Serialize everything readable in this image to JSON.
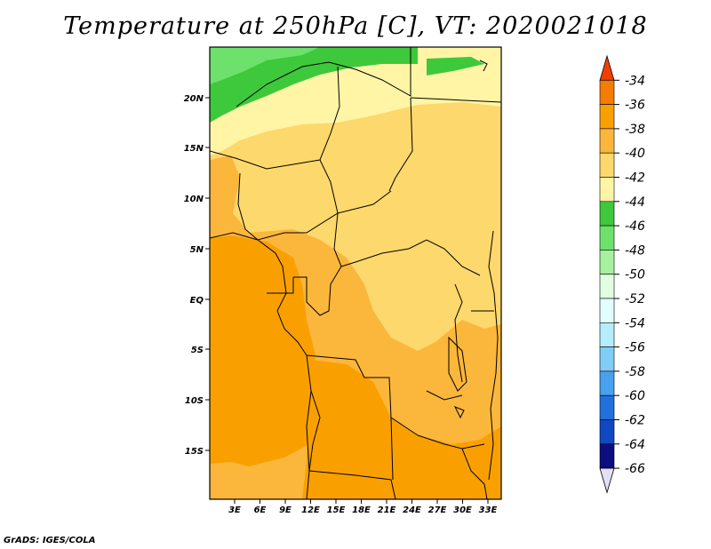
{
  "title": "Temperature at 250hPa [C], VT: 2020021018",
  "credit": "GrADS: IGES/COLA",
  "lat_labels": [
    "20N",
    "15N",
    "10N",
    "5N",
    "EQ",
    "5S",
    "10S",
    "15S"
  ],
  "lon_labels": [
    "3E",
    "6E",
    "9E",
    "12E",
    "15E",
    "18E",
    "21E",
    "24E",
    "27E",
    "30E",
    "33E"
  ],
  "colorbar": {
    "labels": [
      "-34",
      "-36",
      "-38",
      "-40",
      "-42",
      "-44",
      "-46",
      "-48",
      "-50",
      "-52",
      "-54",
      "-56",
      "-58",
      "-60",
      "-62",
      "-64",
      "-66"
    ],
    "colors": [
      "#f04000",
      "#f57c00",
      "#f9a000",
      "#fbb63c",
      "#fdd86c",
      "#fff5a5",
      "#3ec83c",
      "#6ee06c",
      "#a6f1a0",
      "#e1ffe1",
      "#e1ffff",
      "#b4eefa",
      "#80cdf5",
      "#48a0ee",
      "#2170dd",
      "#1049c2",
      "#0c0d80",
      "#e1e1f6"
    ]
  },
  "field_colors": {
    "t38": "#f9a000",
    "t40": "#fbb63c",
    "t42": "#fdd86c",
    "t44": "#fff5a5",
    "t46": "#3ec83c",
    "t48": "#6ee06c"
  }
}
